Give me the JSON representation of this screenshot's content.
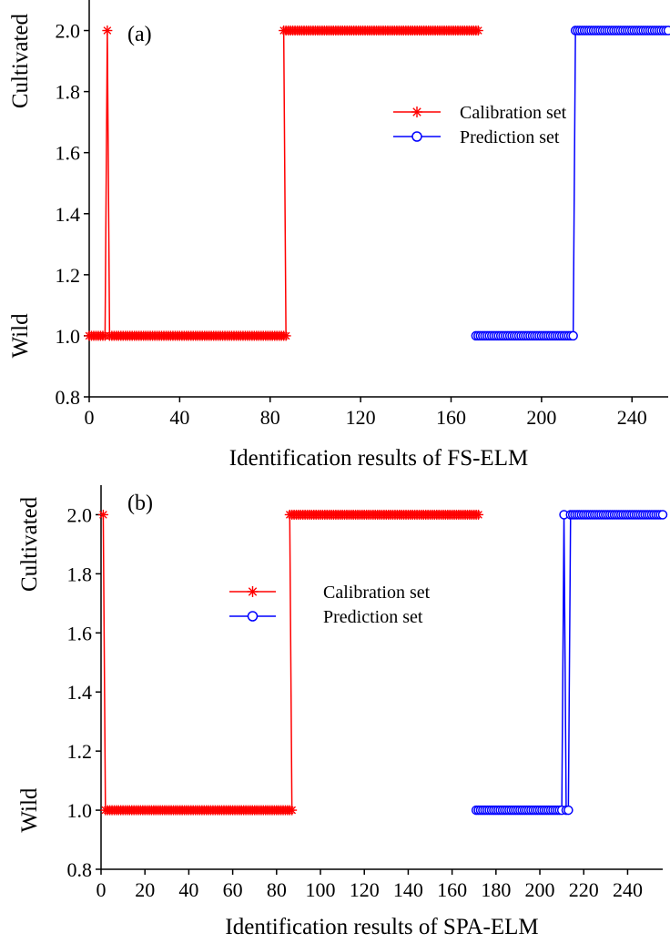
{
  "chart_data": [
    {
      "type": "line",
      "title": "(a)",
      "xlabel": "Identification results of FS-ELM",
      "ylabel_top": "Cultivated",
      "ylabel_bottom": "Wild",
      "xlim": [
        0,
        256
      ],
      "ylim": [
        0.8,
        2.1
      ],
      "xticks": [
        0,
        40,
        80,
        120,
        160,
        200,
        240
      ],
      "yticks": [
        0.8,
        1.0,
        1.2,
        1.4,
        1.6,
        1.8,
        2.0
      ],
      "grid": false,
      "legend_position": "center-right",
      "series": [
        {
          "name": "Calibration set",
          "marker": "asterisk",
          "color": "#ff0000",
          "segments": [
            {
              "x_start": 0,
              "x_end": 7,
              "y": 1.0
            },
            {
              "x_start": 8,
              "x_end": 8,
              "y": 2.0
            },
            {
              "x_start": 9,
              "x_end": 87,
              "y": 1.0
            },
            {
              "x_start": 86,
              "x_end": 172,
              "y": 2.0
            }
          ]
        },
        {
          "name": "Prediction set",
          "marker": "circle",
          "color": "#0000ff",
          "segments": [
            {
              "x_start": 171,
              "x_end": 214,
              "y": 1.0
            },
            {
              "x_start": 215,
              "x_end": 256,
              "y": 2.0
            }
          ]
        }
      ]
    },
    {
      "type": "line",
      "title": "(b)",
      "xlabel": "Identification results of SPA-ELM",
      "ylabel_top": "Cultivated",
      "ylabel_bottom": "Wild",
      "xlim": [
        0,
        256
      ],
      "ylim": [
        0.8,
        2.1
      ],
      "xticks": [
        0,
        20,
        40,
        60,
        80,
        100,
        120,
        140,
        160,
        180,
        200,
        220,
        240
      ],
      "yticks": [
        0.8,
        1.0,
        1.2,
        1.4,
        1.6,
        1.8,
        2.0
      ],
      "grid": false,
      "legend_position": "center-left",
      "series": [
        {
          "name": "Calibration set",
          "marker": "asterisk",
          "color": "#ff0000",
          "segments": [
            {
              "x_start": 1,
              "x_end": 1,
              "y": 2.0
            },
            {
              "x_start": 2,
              "x_end": 87,
              "y": 1.0
            },
            {
              "x_start": 86,
              "x_end": 172,
              "y": 2.0
            }
          ]
        },
        {
          "name": "Prediction set",
          "marker": "circle",
          "color": "#0000ff",
          "segments": [
            {
              "x_start": 171,
              "x_end": 210,
              "y": 1.0
            },
            {
              "x_start": 211,
              "x_end": 211,
              "y": 2.0
            },
            {
              "x_start": 212,
              "x_end": 213,
              "y": 1.0
            },
            {
              "x_start": 214,
              "x_end": 256,
              "y": 2.0
            }
          ]
        }
      ]
    }
  ]
}
